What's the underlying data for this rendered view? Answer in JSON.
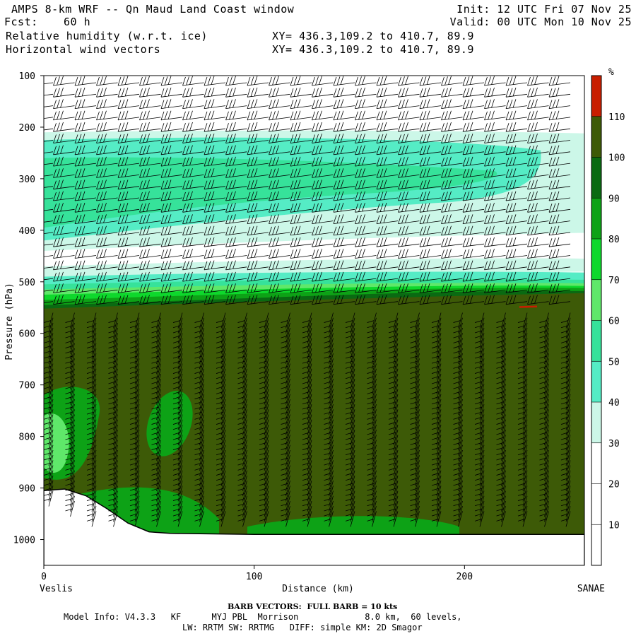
{
  "header": {
    "title": "AMPS 8-km WRF -- Qn Maud Land Coast window",
    "init": "Init: 12 UTC Fri 07 Nov 25",
    "fcst_label": "Fcst:",
    "fcst_value": "60 h",
    "valid": "Valid: 00 UTC Mon 10 Nov 25",
    "field1": "Relative humidity (w.r.t. ice)",
    "field2": "Horizontal wind vectors",
    "xy1": "XY= 436.3,109.2 to 410.7, 89.9",
    "xy2": "XY= 436.3,109.2 to 410.7, 89.9"
  },
  "footer": {
    "barb": "BARB VECTORS:  FULL BARB = 10 kts",
    "model_info": "Model Info: V4.3.3   KF      MYJ PBL  Morrison             8.0 km,  60 levels,",
    "physics": "LW: RRTM SW: RRTMG   DIFF: simple KM: 2D Smagor"
  },
  "chart_data": {
    "type": "heatmap",
    "title": "Relative humidity (w.r.t. ice)",
    "xlabel": "Distance (km)",
    "ylabel": "Pressure (hPa)",
    "x_ticks": [
      0,
      100,
      200
    ],
    "x_tick_labels": [
      "0",
      "100",
      "200"
    ],
    "xlim": [
      0,
      257
    ],
    "y_ticks": [
      100,
      200,
      300,
      400,
      500,
      600,
      700,
      800,
      900,
      1000
    ],
    "y_tick_labels": [
      "100",
      "200",
      "300",
      "400",
      "500",
      "600",
      "700",
      "800",
      "900",
      "1000"
    ],
    "ylim": [
      100,
      1050
    ],
    "start_label": "Veslis",
    "end_label": "SANAE",
    "colorbar": {
      "unit": "%",
      "tick_labels": [
        "10",
        "20",
        "30",
        "40",
        "50",
        "60",
        "70",
        "80",
        "90",
        "100",
        "110"
      ],
      "colors": [
        "#ffffff",
        "#ffffff",
        "#ffffff",
        "#ccf7e8",
        "#55ecc5",
        "#36e29a",
        "#5fe86a",
        "#0ed82c",
        "#0da216",
        "#0a6a12",
        "#3d5a07",
        "#c81e00"
      ]
    },
    "layers": [
      {
        "from_hPa": 100,
        "to_hPa": 200,
        "rh_band": "below 30"
      },
      {
        "from_hPa": 210,
        "to_hPa": 440,
        "rh_band": "30-60"
      },
      {
        "from_hPa": 440,
        "to_hPa": 490,
        "rh_band": "below 40"
      },
      {
        "from_hPa": 490,
        "to_hPa": 545,
        "rh_band": "40-100"
      },
      {
        "from_hPa": 545,
        "to_hPa": 990,
        "rh_band": "100-110"
      }
    ],
    "terrain": [
      {
        "x": 0,
        "p": 905
      },
      {
        "x": 10,
        "p": 902
      },
      {
        "x": 20,
        "p": 915
      },
      {
        "x": 30,
        "p": 940
      },
      {
        "x": 40,
        "p": 968
      },
      {
        "x": 50,
        "p": 985
      },
      {
        "x": 60,
        "p": 988
      },
      {
        "x": 100,
        "p": 990
      },
      {
        "x": 150,
        "p": 990
      },
      {
        "x": 200,
        "p": 990
      },
      {
        "x": 257,
        "p": 990
      }
    ],
    "grid": false,
    "legend": "right"
  }
}
